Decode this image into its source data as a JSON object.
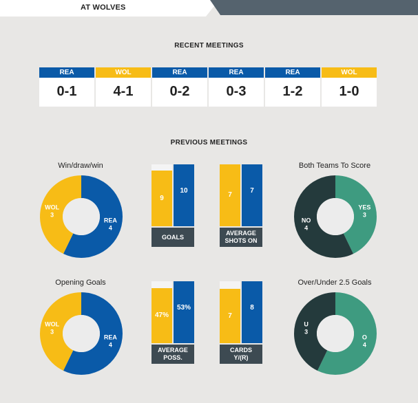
{
  "header": {
    "title": "AT WOLVES"
  },
  "recent": {
    "title": "RECENT MEETINGS",
    "items": [
      {
        "team": "REA",
        "score": "0-1"
      },
      {
        "team": "WOL",
        "score": "4-1"
      },
      {
        "team": "REA",
        "score": "0-2"
      },
      {
        "team": "REA",
        "score": "0-3"
      },
      {
        "team": "REA",
        "score": "1-2"
      },
      {
        "team": "WOL",
        "score": "1-0"
      }
    ]
  },
  "previous": {
    "title": "PREVIOUS MEETINGS"
  },
  "colors": {
    "rea": "#0a5aa8",
    "wol": "#f7bc16",
    "green": "#3e9b80",
    "dark": "#243a3c",
    "caption": "#3d4a52"
  },
  "donuts": {
    "wdw": {
      "title": "Win/draw/win",
      "a_label": "WOL",
      "a_value": "3",
      "b_label": "REA",
      "b_value": "4"
    },
    "btts": {
      "title": "Both Teams To Score",
      "a_label": "NO",
      "a_value": "4",
      "b_label": "YES",
      "b_value": "3"
    },
    "og": {
      "title": "Opening Goals",
      "a_label": "WOL",
      "a_value": "3",
      "b_label": "REA",
      "b_value": "4"
    },
    "ou": {
      "title": "Over/Under 2.5 Goals",
      "a_label": "U",
      "a_value": "3",
      "b_label": "O",
      "b_value": "4"
    }
  },
  "bars": {
    "goals": {
      "caption": [
        "GOALS"
      ],
      "a_value": 9,
      "b_value": 10,
      "a_text": "9",
      "b_text": "10"
    },
    "shots": {
      "caption": [
        "AVERAGE",
        "SHOTS ON"
      ],
      "a_value": 7,
      "b_value": 7,
      "a_text": "7",
      "b_text": "7"
    },
    "poss": {
      "caption": [
        "AVERAGE",
        "POSS."
      ],
      "a_value": 47,
      "b_value": 53,
      "a_text": "47%",
      "b_text": "53%"
    },
    "cards": {
      "caption": [
        "CARDS",
        "Y/(R)"
      ],
      "a_value": 7,
      "b_value": 8,
      "a_text": "7",
      "b_text": "8"
    }
  }
}
